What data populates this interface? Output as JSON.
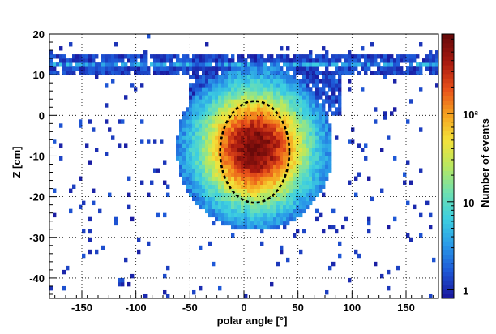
{
  "chart_data": {
    "type": "heatmap",
    "xlabel": "polar angle [°]",
    "ylabel": "Z [cm]",
    "zlabel": "Number of events",
    "xlim": [
      -180,
      180
    ],
    "ylim": [
      -45,
      20
    ],
    "zscale": "log",
    "zlim": [
      0.8,
      800
    ],
    "x_ticks": [
      "-150",
      "-100",
      "-50",
      "0",
      "50",
      "100",
      "150"
    ],
    "y_ticks": [
      "20",
      "10",
      "0",
      "-10",
      "-20",
      "-30",
      "-40"
    ],
    "z_ticks": [
      "1",
      "10",
      "10²"
    ],
    "grid": true,
    "colormap": [
      "#1a1aa0",
      "#1e5ad8",
      "#2a9be8",
      "#3dcfe0",
      "#6fe0b0",
      "#b8e860",
      "#f4e23a",
      "#f5a020",
      "#e8501a",
      "#a81a10",
      "#6a0a0a"
    ],
    "peak": {
      "x": 10,
      "y": -8
    },
    "ellipse": {
      "cx": 10,
      "cy": -9,
      "rx": 32,
      "ry": 12.5,
      "style": "dashed"
    },
    "band": {
      "y_min": 10,
      "y_max": 15
    }
  }
}
